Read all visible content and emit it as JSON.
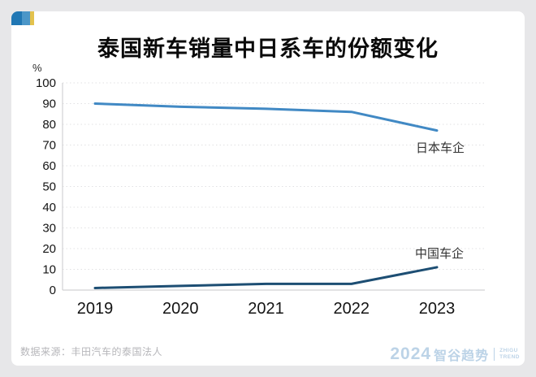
{
  "page": {
    "source_note": "数据来源：丰田汽车的泰国法人",
    "brand": {
      "year": "2024",
      "name": "智谷趋势",
      "sub_line1": "ZHIGU",
      "sub_line2": "TREND"
    },
    "colors": {
      "logo_blue_dark": "#2077b4",
      "logo_blue_light": "#4b96c8",
      "logo_yellow": "#e3c24d",
      "brand_blue": "#bcd3e7",
      "axis_line": "#d2d2d4",
      "gridline": "#e1e1e3",
      "tick_text": "#141414",
      "series_label_text": "#333333"
    }
  },
  "chart_data": {
    "type": "line",
    "title": "泰国新车销量中日系车的份额变化",
    "unit_label": "%",
    "categories": [
      "2019",
      "2020",
      "2021",
      "2022",
      "2023"
    ],
    "series": [
      {
        "name": "日本车企",
        "values": [
          90,
          88.5,
          87.5,
          86,
          77
        ],
        "color": "#4189c4"
      },
      {
        "name": "中国车企",
        "values": [
          1,
          2,
          3,
          3,
          11
        ],
        "color": "#1d4e73"
      }
    ],
    "xlabel": "",
    "ylabel": "%",
    "ylim": [
      0,
      100
    ],
    "y_ticks": [
      0,
      10,
      20,
      30,
      40,
      50,
      60,
      70,
      80,
      90,
      100
    ],
    "grid": "horizontal-dotted",
    "legend_position": "inline-end-labels"
  }
}
